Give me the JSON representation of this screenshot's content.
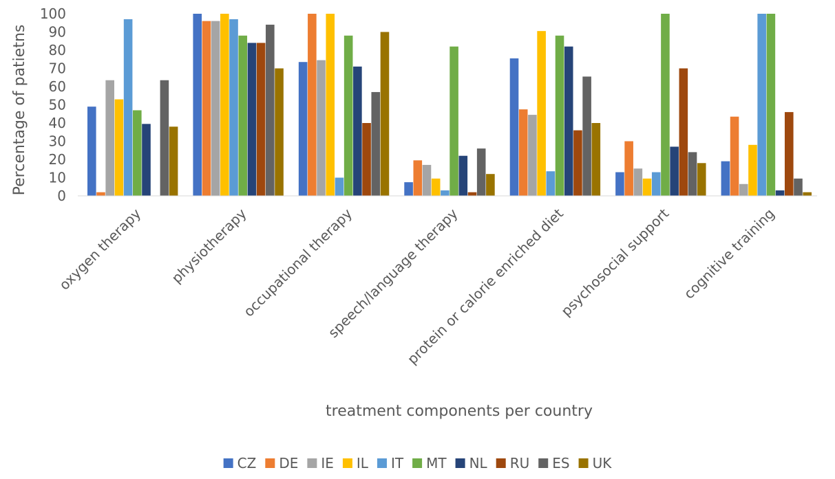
{
  "chart_data": {
    "type": "bar",
    "title": "",
    "xlabel": "treatment components per country",
    "ylabel": "Percentage of patietns",
    "ylim": [
      0,
      100
    ],
    "yticks": [
      0,
      10,
      20,
      30,
      40,
      50,
      60,
      70,
      80,
      90,
      100
    ],
    "grid": false,
    "legend_position": "bottom",
    "categories": [
      "oxygen therapy",
      "physiotherapy",
      "occupational therapy",
      "speech/language therapy",
      "protein or calorie enriched diet",
      "psychosocial support",
      "cognitive training"
    ],
    "series": [
      {
        "name": "CZ",
        "color": "#4472C4",
        "values": [
          49,
          100,
          73.5,
          7.5,
          75.5,
          13,
          19
        ]
      },
      {
        "name": "DE",
        "color": "#ED7D31",
        "values": [
          2,
          96,
          100,
          19.5,
          47.5,
          30,
          43.5
        ]
      },
      {
        "name": "IE",
        "color": "#A5A5A5",
        "values": [
          63.5,
          96,
          74.5,
          17,
          44.5,
          15,
          6.5
        ]
      },
      {
        "name": "IL",
        "color": "#FFC000",
        "values": [
          53,
          100,
          100,
          9.5,
          90.5,
          9.5,
          28
        ]
      },
      {
        "name": "IT",
        "color": "#5B9BD5",
        "values": [
          97,
          97,
          10,
          3,
          13.5,
          13,
          100
        ]
      },
      {
        "name": "MT",
        "color": "#70AD47",
        "values": [
          47,
          88,
          88,
          82,
          88,
          100,
          100
        ]
      },
      {
        "name": "NL",
        "color": "#264478",
        "values": [
          39.5,
          84,
          71,
          22,
          82,
          27,
          3
        ]
      },
      {
        "name": "RU",
        "color": "#9E480E",
        "values": [
          0,
          84,
          40,
          2,
          36,
          70,
          46
        ]
      },
      {
        "name": "ES",
        "color": "#636363",
        "values": [
          63.5,
          94,
          57,
          26,
          65.5,
          24,
          9.5
        ]
      },
      {
        "name": "UK",
        "color": "#997300",
        "values": [
          38,
          70,
          90,
          12,
          40,
          18,
          2
        ]
      }
    ]
  }
}
